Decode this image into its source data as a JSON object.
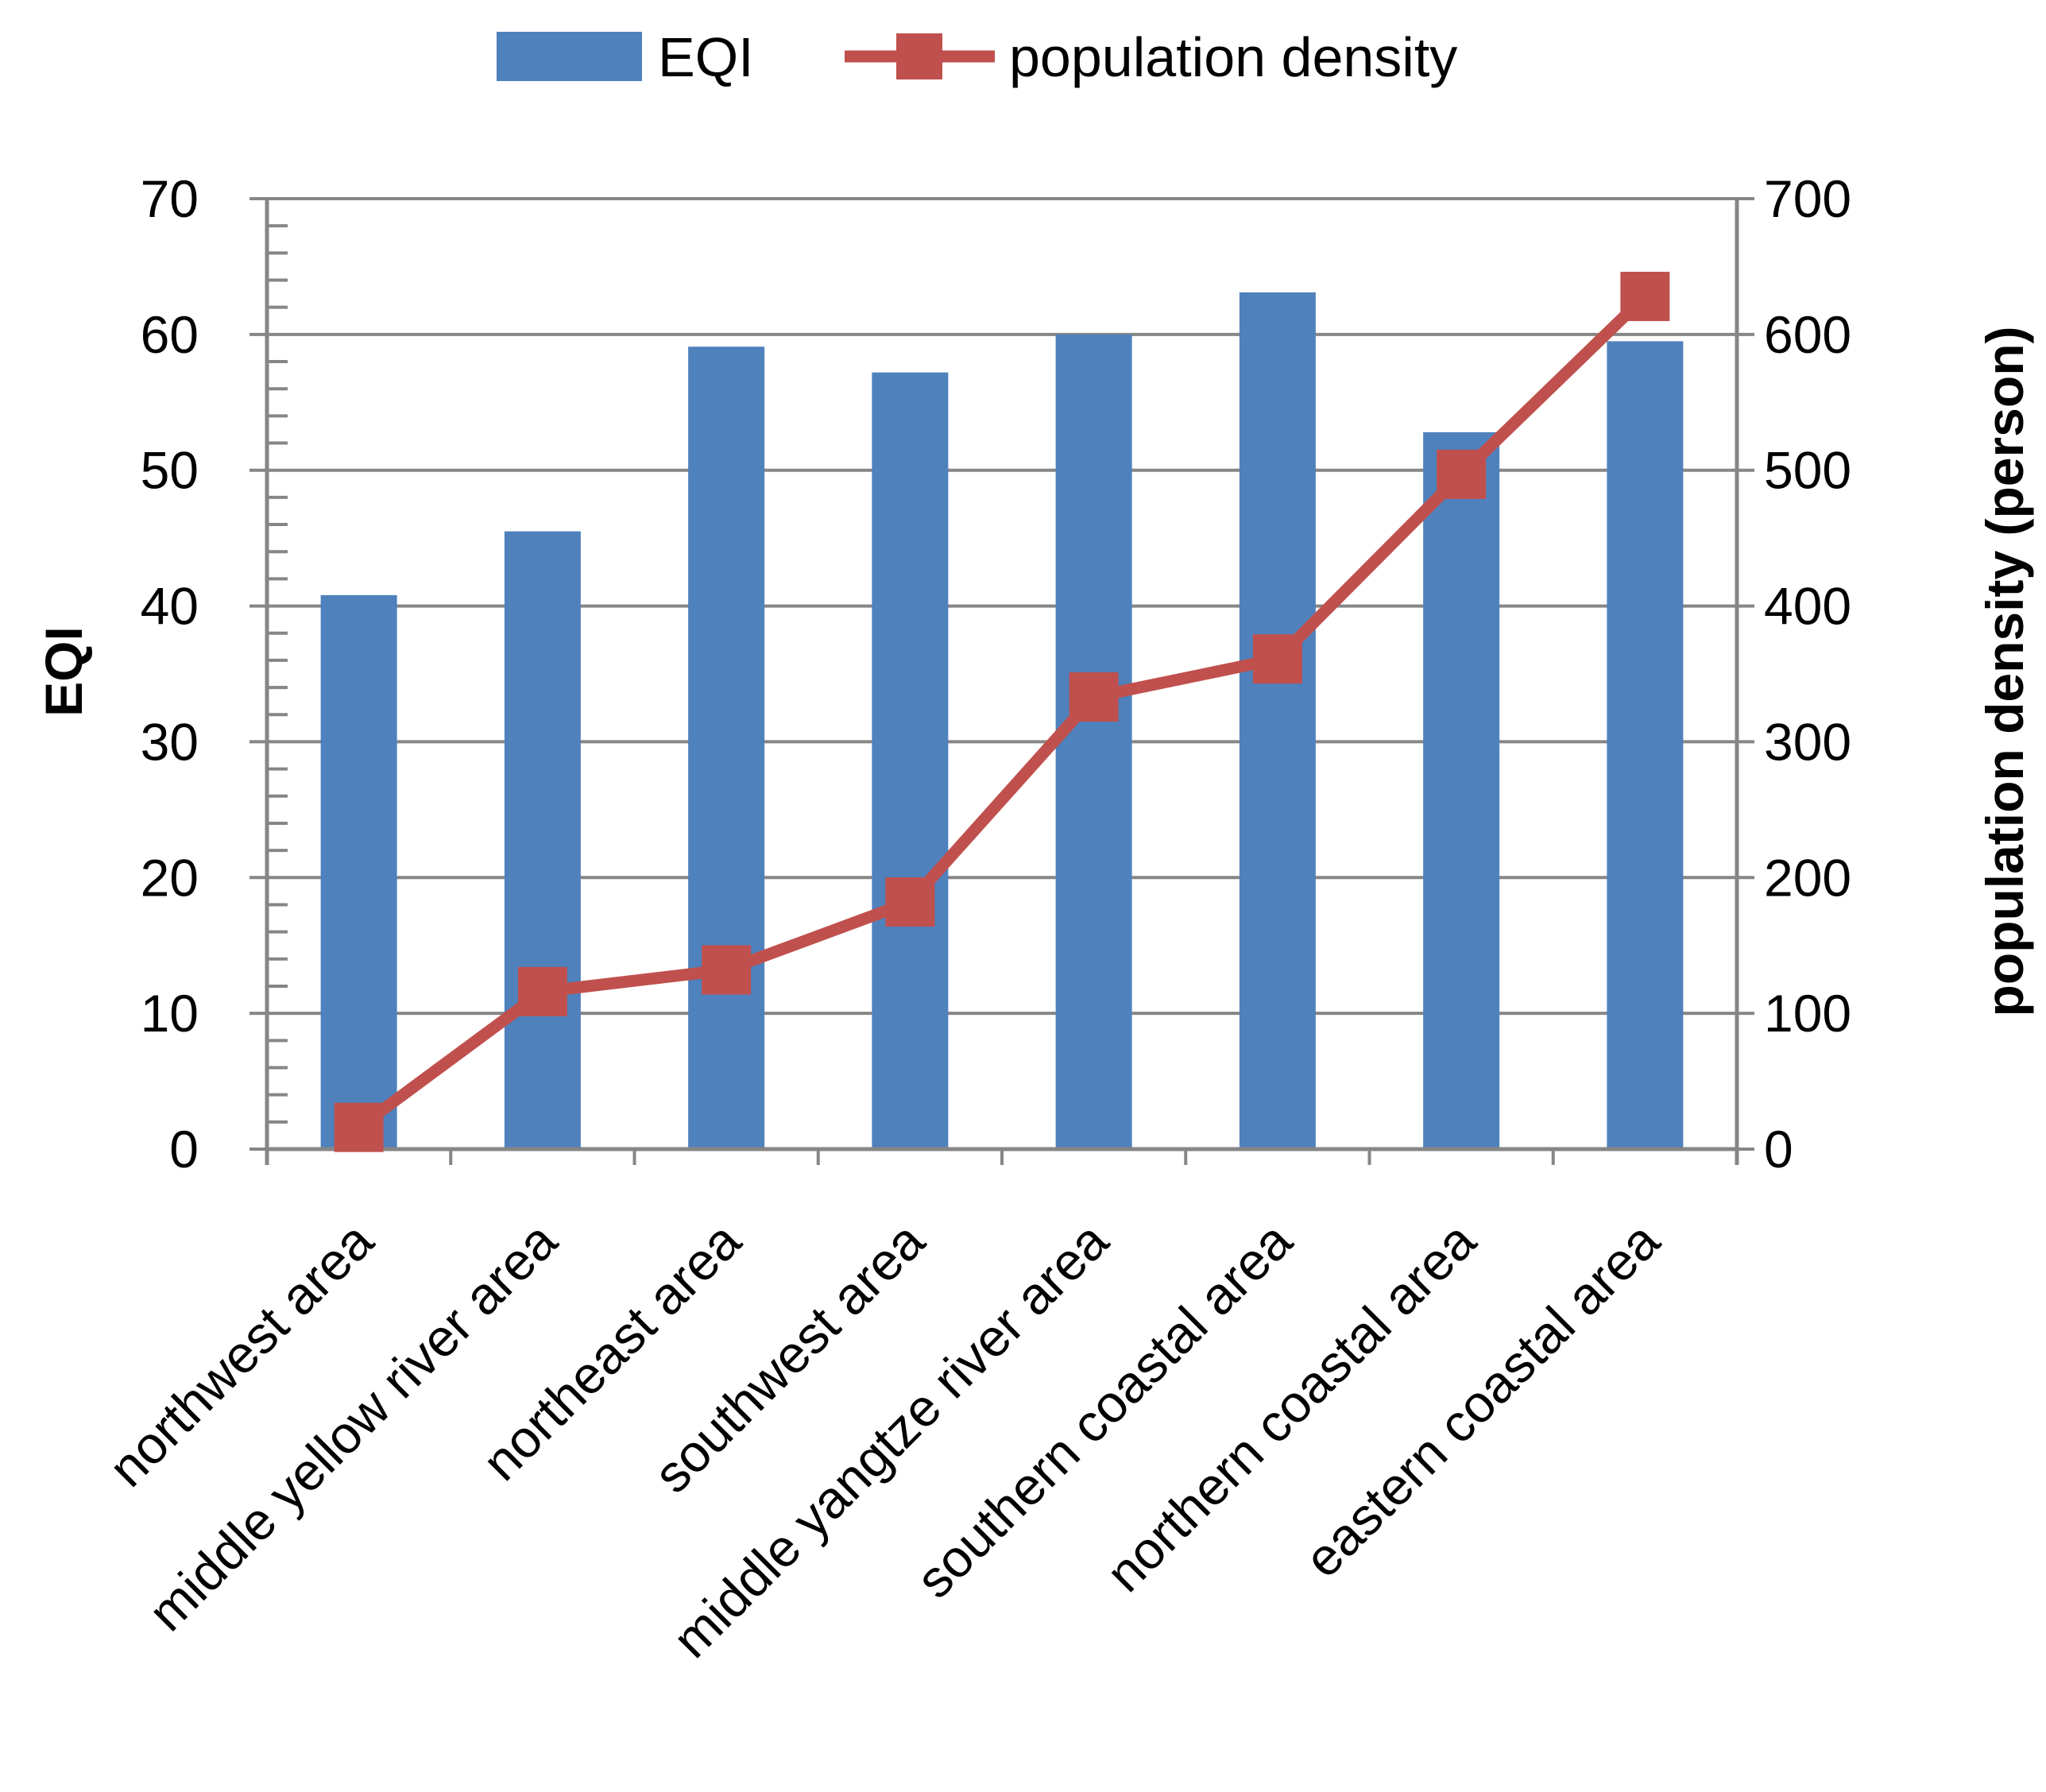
{
  "chart_data": {
    "type": "bar",
    "categories": [
      "northwest area",
      "middle yellow river area",
      "northeast area",
      "southwest area",
      "middle yangtze  river area",
      "southern coastal  area",
      "northern coastal  area",
      "eastern coastal  area"
    ],
    "series": [
      {
        "name": "EQI",
        "type": "bar",
        "axis": "left",
        "values": [
          40.8,
          45.5,
          59.1,
          57.2,
          60.0,
          63.1,
          52.8,
          59.5
        ]
      },
      {
        "name": "population density",
        "type": "line",
        "axis": "right",
        "values": [
          16,
          116,
          132,
          182,
          333,
          361,
          497,
          628
        ]
      }
    ],
    "ylabel": "EQI",
    "y2label": "population density (person)",
    "ylim": [
      0,
      70
    ],
    "y2lim": [
      0,
      700
    ],
    "yticks": [
      "0",
      "10",
      "20",
      "30",
      "40",
      "50",
      "60",
      "70"
    ],
    "y2ticks": [
      "0",
      "100",
      "200",
      "300",
      "400",
      "500",
      "600",
      "700"
    ],
    "grid": true,
    "legend": "top-center"
  },
  "colors": {
    "bar": "#4F81BD",
    "line": "#C0504D",
    "grid": "#868686",
    "text": "#000000"
  }
}
